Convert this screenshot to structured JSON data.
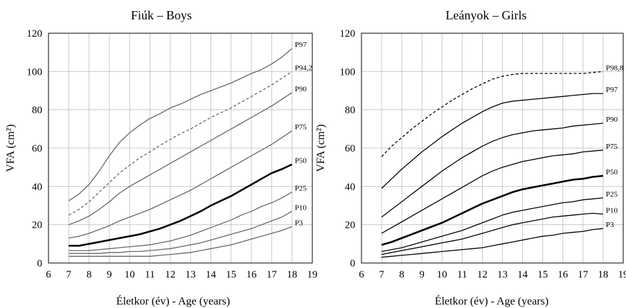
{
  "chart_data": [
    {
      "type": "line",
      "title": "Fiúk – Boys",
      "xlabel": "Életkor (év) - Age (years)",
      "ylabel": "VFA (cm²)",
      "xlim": [
        6,
        19
      ],
      "ylim": [
        0,
        120
      ],
      "xticks": [
        "6",
        "7",
        "8",
        "9",
        "10",
        "11",
        "12",
        "13",
        "14",
        "15",
        "16",
        "17",
        "18",
        "19"
      ],
      "yticks": [
        "0",
        "20",
        "40",
        "60",
        "80",
        "100",
        "120"
      ],
      "grid": true,
      "line_color": "#666666",
      "x": [
        7,
        7.5,
        8,
        8.5,
        9,
        9.5,
        10,
        10.5,
        11,
        11.5,
        12,
        12.5,
        13,
        13.5,
        14,
        14.5,
        15,
        15.5,
        16,
        16.5,
        17,
        17.5,
        18
      ],
      "series": [
        {
          "name": "P97",
          "style": "solid",
          "values": [
            32.5,
            36,
            41,
            48,
            56,
            63,
            68,
            72,
            75.5,
            78,
            81,
            83,
            85.5,
            88,
            90,
            92,
            94,
            96.5,
            99,
            101,
            104,
            107.5,
            112
          ]
        },
        {
          "name": "P94,2",
          "style": "dashed",
          "values": [
            25,
            28,
            32,
            37,
            42,
            47,
            51,
            55,
            58,
            61.5,
            64.5,
            67.5,
            70,
            73,
            76,
            78.5,
            81,
            84,
            87,
            90,
            93,
            96.5,
            100
          ]
        },
        {
          "name": "P90",
          "style": "solid",
          "values": [
            20,
            22,
            24.5,
            28,
            32,
            36.5,
            40,
            43,
            46,
            49,
            52,
            55,
            58,
            61,
            64,
            67,
            70,
            73,
            76,
            79,
            82,
            85.5,
            89
          ]
        },
        {
          "name": "P75",
          "style": "solid",
          "values": [
            13,
            14,
            15.5,
            17.5,
            19.5,
            22,
            24,
            26,
            28,
            30.5,
            33,
            35.5,
            38,
            41,
            44,
            47,
            50,
            53,
            56,
            59,
            62,
            65.5,
            69
          ]
        },
        {
          "name": "P50",
          "style": "bold",
          "values": [
            9,
            9,
            10,
            11,
            12,
            13,
            14,
            15,
            16.5,
            18,
            20,
            22,
            24.5,
            27,
            30,
            32.5,
            35,
            38,
            41,
            44,
            47,
            49,
            51.5
          ]
        },
        {
          "name": "P25",
          "style": "solid",
          "values": [
            6.5,
            6.5,
            6.5,
            7,
            7.5,
            8,
            8.5,
            9,
            9.5,
            10.5,
            11.5,
            13,
            14.5,
            16.5,
            18.5,
            20.5,
            22.5,
            25,
            27,
            29.5,
            31.5,
            34,
            37
          ]
        },
        {
          "name": "P10",
          "style": "solid",
          "values": [
            5,
            5,
            5,
            5,
            5.5,
            5.5,
            6,
            6,
            6.5,
            7,
            7.5,
            8.5,
            9.5,
            10.5,
            12,
            13.5,
            15,
            16.5,
            18,
            20,
            22,
            24,
            27
          ]
        },
        {
          "name": "P3",
          "style": "solid",
          "values": [
            3.5,
            3.5,
            3.5,
            3.5,
            3.5,
            3.5,
            3.5,
            3.5,
            3.5,
            4,
            4.5,
            5,
            5.5,
            6.5,
            7.5,
            8.5,
            9.5,
            11,
            12.5,
            14,
            15.5,
            17,
            19
          ]
        }
      ]
    },
    {
      "type": "line",
      "title": "Leányok – Girls",
      "xlabel": "Életkor (év) - Age (years)",
      "ylabel": "VFA (cm²)",
      "xlim": [
        6,
        19
      ],
      "ylim": [
        0,
        120
      ],
      "xticks": [
        "6",
        "7",
        "8",
        "9",
        "10",
        "11",
        "12",
        "13",
        "14",
        "15",
        "16",
        "17",
        "18",
        "19"
      ],
      "yticks": [
        "0",
        "20",
        "40",
        "60",
        "80",
        "100",
        "120"
      ],
      "grid": true,
      "line_color": "#000000",
      "x": [
        7,
        7.5,
        8,
        8.5,
        9,
        9.5,
        10,
        10.5,
        11,
        11.5,
        12,
        12.5,
        13,
        13.5,
        14,
        14.5,
        15,
        15.5,
        16,
        16.5,
        17,
        17.5,
        18
      ],
      "series": [
        {
          "name": "P98,8",
          "style": "dashed",
          "values": [
            55.5,
            61,
            65.5,
            70,
            74,
            78,
            81.5,
            85,
            88,
            91,
            93.5,
            96,
            97.5,
            98.5,
            99,
            99,
            99,
            99,
            99,
            99,
            99,
            99.5,
            100
          ]
        },
        {
          "name": "P97",
          "style": "solid",
          "values": [
            39,
            44,
            49,
            53.5,
            58,
            62,
            66,
            69.5,
            73,
            76,
            79,
            81.5,
            83.5,
            84.5,
            85,
            85.5,
            86,
            86.5,
            87,
            87.5,
            88,
            88.5,
            88.5
          ]
        },
        {
          "name": "P90",
          "style": "solid",
          "values": [
            24,
            28,
            32,
            36,
            40,
            44,
            48,
            51.5,
            55,
            58,
            61,
            63.5,
            65.5,
            67,
            68,
            69,
            69.5,
            70,
            70.5,
            71.5,
            72,
            72.5,
            73
          ]
        },
        {
          "name": "P75",
          "style": "solid",
          "values": [
            15.5,
            18.5,
            21.5,
            24.5,
            27.5,
            30.5,
            33.5,
            36.5,
            39.5,
            42.5,
            45.5,
            48,
            50,
            51.5,
            53,
            54,
            55,
            56,
            56.5,
            57,
            58,
            58.5,
            59
          ]
        },
        {
          "name": "P50",
          "style": "bold",
          "values": [
            9.5,
            11,
            13,
            15,
            17,
            19,
            21,
            23.5,
            26,
            28.5,
            31,
            33,
            35,
            37,
            38.5,
            39.5,
            40.5,
            41.5,
            42.5,
            43.5,
            44,
            45,
            45.5
          ]
        },
        {
          "name": "P25",
          "style": "solid",
          "values": [
            6,
            7,
            8,
            9.5,
            11,
            12.5,
            14,
            15.5,
            17,
            19,
            21,
            23,
            25,
            26.5,
            27.5,
            28.5,
            29.5,
            30.5,
            31.5,
            32,
            33,
            33.5,
            34
          ]
        },
        {
          "name": "P10",
          "style": "solid",
          "values": [
            4.5,
            5.5,
            6.5,
            7.5,
            8.5,
            9.5,
            10.5,
            11.5,
            12.5,
            14,
            15.5,
            17,
            18.5,
            20,
            21,
            22,
            23,
            24,
            24.5,
            25,
            25.5,
            26,
            25.5
          ]
        },
        {
          "name": "P3",
          "style": "solid",
          "values": [
            3,
            3.5,
            4,
            4.5,
            5,
            5.5,
            6,
            6.5,
            7,
            7.5,
            8,
            9,
            10,
            11,
            12,
            13,
            14,
            14.5,
            15.5,
            16,
            16.5,
            17.5,
            18
          ]
        }
      ]
    }
  ]
}
